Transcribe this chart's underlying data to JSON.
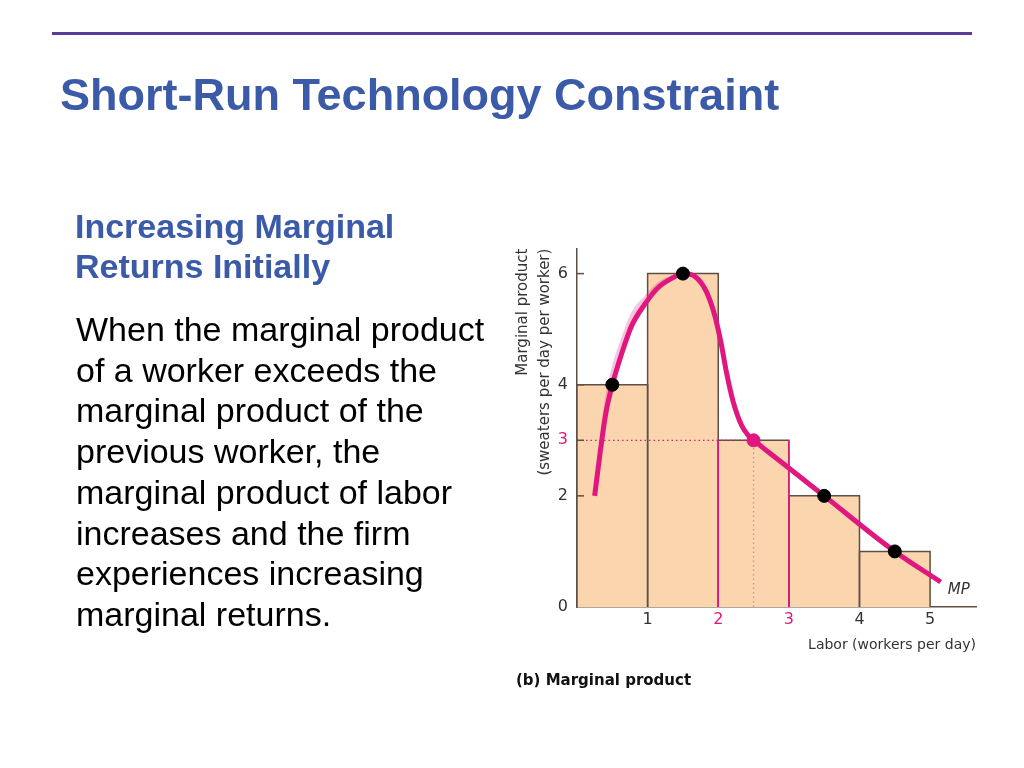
{
  "chart_data": {
    "type": "histogram",
    "title": "Short-Run Technology Constraint",
    "subtitle": "Increasing Marginal Returns Initially",
    "xlabel": "Labor (workers per day)",
    "ylabel": "Marginal product (sweaters per day per worker)",
    "annotations": [
      "When the marginal product of a worker exceeds the marginal product of the previous worker, the marginal product of labor increases and the firm experiences increasing marginal returns.",
      "(b) Marginal product"
    ],
    "bins": [
      0,
      1,
      2,
      3,
      4,
      5
    ],
    "series": [
      {
        "color": "#fbd5ae",
        "values": [
          4,
          6,
          3,
          2,
          1
        ]
      },
      {
        "type": "line",
        "name": "MP",
        "color": "#e0177e",
        "marker": "none",
        "x": [
          0.25,
          0.33,
          0.41,
          0.5,
          0.63,
          0.77,
          0.96,
          1.15,
          1.35,
          1.5,
          1.68,
          1.83,
          1.95,
          2.04,
          2.12,
          2.21,
          2.33,
          2.43,
          2.5,
          2.6,
          3,
          3.5,
          4.5,
          5.15
        ],
        "values": [
          2,
          2.8,
          3.5,
          4,
          4.55,
          5.05,
          5.45,
          5.75,
          5.92,
          6,
          5.94,
          5.68,
          5.25,
          4.75,
          4.2,
          3.7,
          3.27,
          3.08,
          3,
          2.9,
          2.5,
          2,
          1,
          0.45
        ],
        "lower": [
          2,
          2.8,
          3.5,
          4,
          4.55,
          5.05,
          5.45,
          5.75,
          5.92,
          null,
          null,
          null,
          null,
          null,
          null,
          null,
          null,
          null,
          null,
          null,
          null,
          null,
          null,
          null
        ],
        "upper": [
          2.1,
          3.1,
          3.85,
          4.35,
          4.85,
          5.3,
          5.6,
          5.85,
          5.97,
          null,
          null,
          null,
          null,
          null,
          null,
          null,
          null,
          null,
          null,
          null,
          null,
          null,
          null,
          null
        ]
      },
      {
        "type": "scatter",
        "marker": "circle",
        "x": [
          0.5,
          1.5,
          2.5,
          3.5,
          4.5
        ],
        "values": [
          4,
          6,
          3,
          2,
          1
        ],
        "colors": [
          "#000000",
          "#000000",
          "#e0177e",
          "#000000",
          "#000000"
        ]
      }
    ],
    "ref_lines": [
      {
        "axis": "y",
        "value": 3,
        "color": "#e0177e",
        "line_style": "dotted"
      },
      {
        "axis": "x",
        "value": 2.5,
        "color": "#d48aa2",
        "line_style": "dotted"
      },
      {
        "axis": "x",
        "value": 2,
        "color": "#e0177e",
        "line_style": "solid"
      },
      {
        "axis": "x",
        "value": 3,
        "color": "#e0177e",
        "line_style": "solid"
      }
    ],
    "xlim": [
      0,
      5.65
    ],
    "xticks": [
      1,
      2,
      3,
      4,
      5
    ],
    "ylim": [
      0,
      6.45
    ],
    "yticks": [
      0,
      2,
      3,
      4,
      6
    ]
  }
}
